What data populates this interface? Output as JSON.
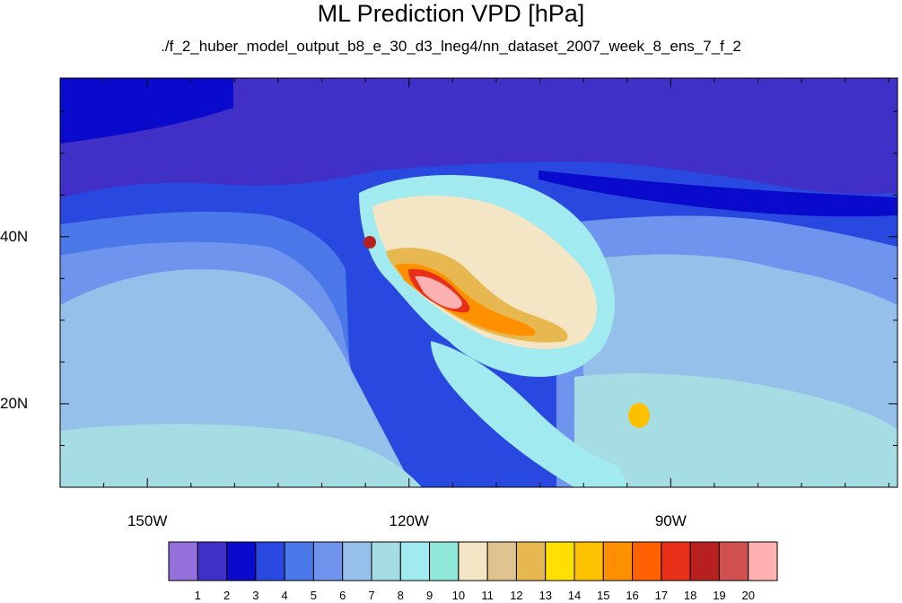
{
  "figure": {
    "title": "ML Prediction VPD [hPa]",
    "subtitle": "./f_2_huber_model_output_b8_e_30_d3_lneg4/nn_dataset_2007_week_8_ens_7_f_2"
  },
  "axes": {
    "lon_ticks": [
      {
        "label": "150W",
        "value": -150
      },
      {
        "label": "120W",
        "value": -120
      },
      {
        "label": "90W",
        "value": -90
      }
    ],
    "lat_ticks": [
      {
        "label": "40N",
        "value": 40
      },
      {
        "label": "20N",
        "value": 20
      }
    ],
    "lon_range": [
      -160,
      -64
    ],
    "lat_range": [
      10,
      59
    ]
  },
  "colorbar": {
    "labels": [
      "1",
      "2",
      "3",
      "4",
      "5",
      "6",
      "7",
      "8",
      "9",
      "10",
      "11",
      "12",
      "13",
      "14",
      "15",
      "16",
      "17",
      "18",
      "19",
      "20"
    ],
    "colors": [
      "#9370db",
      "#4030c8",
      "#0a0acd",
      "#2848e0",
      "#4a78e8",
      "#6e94ee",
      "#94c0ea",
      "#a6dce4",
      "#a0eaf0",
      "#90e8d8",
      "#f4e6c4",
      "#e0c490",
      "#e8b850",
      "#ffe000",
      "#ffc000",
      "#ff9000",
      "#ff6000",
      "#e83018",
      "#b82020",
      "#d05050",
      "#ffb0b0"
    ]
  },
  "map_regions": {
    "ocean_north": "#4030c8",
    "pacific": "#6e94ee",
    "pacific_inner": "#94c0ea",
    "subtropic": "#a6dce4",
    "land_east": "#94c0ea",
    "canada": "#0a0acd"
  }
}
